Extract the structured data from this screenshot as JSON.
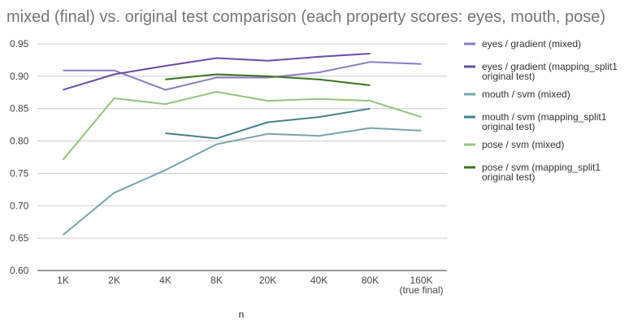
{
  "chart_data": {
    "type": "line",
    "title": "mixed (final) vs. original test comparison (each property scores: eyes, mouth, pose)",
    "xlabel": "n",
    "ylabel": "",
    "categories": [
      [
        "1K"
      ],
      [
        "2K"
      ],
      [
        "4K"
      ],
      [
        "8K"
      ],
      [
        "20K"
      ],
      [
        "40K"
      ],
      [
        "80K"
      ],
      [
        "160K",
        "(true final)"
      ]
    ],
    "ylim": [
      0.6,
      0.95
    ],
    "yticks": [
      "0.60",
      "0.65",
      "0.70",
      "0.75",
      "0.80",
      "0.85",
      "0.90",
      "0.95"
    ],
    "grid": true,
    "legend_position": "right",
    "series": [
      {
        "name": [
          "eyes / gradient (mixed)"
        ],
        "color": "#8e7cc3",
        "values": [
          0.909,
          0.909,
          0.879,
          0.898,
          0.898,
          0.906,
          0.922,
          0.919
        ]
      },
      {
        "name": [
          "eyes / gradient (mapping_split1",
          "original test)"
        ],
        "color": "#674ea7",
        "values": [
          0.879,
          0.903,
          0.916,
          0.928,
          0.924,
          0.93,
          0.935,
          null
        ]
      },
      {
        "name": [
          "mouth / svm (mixed)"
        ],
        "color": "#76a5af",
        "values": [
          0.655,
          0.72,
          0.755,
          0.795,
          0.811,
          0.808,
          0.82,
          0.816
        ]
      },
      {
        "name": [
          "mouth / svm (mapping_split1",
          "original test)"
        ],
        "color": "#45818e",
        "values": [
          null,
          null,
          0.812,
          0.804,
          0.829,
          0.837,
          0.85,
          null
        ]
      },
      {
        "name": [
          "pose / svm (mixed)"
        ],
        "color": "#93c47d",
        "values": [
          0.771,
          0.866,
          0.857,
          0.876,
          0.862,
          0.865,
          0.862,
          0.837
        ]
      },
      {
        "name": [
          "pose / svm (mapping_split1",
          "original test)"
        ],
        "color": "#38761d",
        "values": [
          null,
          null,
          0.895,
          0.903,
          0.9,
          0.895,
          0.886,
          null
        ]
      }
    ]
  }
}
